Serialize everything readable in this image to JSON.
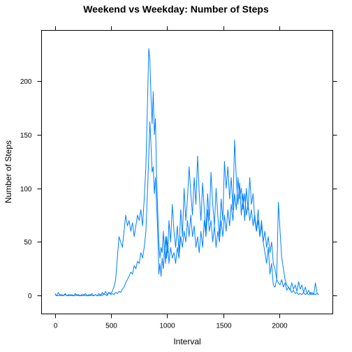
{
  "chart_data": {
    "type": "line",
    "title": "Weekend vs Weekday: Number of Steps",
    "xlabel": "Interval",
    "ylabel": "Number of Steps",
    "xlim": [
      -120,
      2475
    ],
    "ylim": [
      -17,
      247
    ],
    "xticks": [
      0,
      500,
      1000,
      1500,
      2000
    ],
    "yticks": [
      0,
      50,
      100,
      150,
      200
    ],
    "grid": false,
    "legend": "none",
    "line_color": "#0080ff",
    "series": [
      {
        "values": [
          [
            0,
            2
          ],
          [
            15,
            0
          ],
          [
            30,
            3
          ],
          [
            45,
            0
          ],
          [
            60,
            1
          ],
          [
            75,
            0
          ],
          [
            90,
            2
          ],
          [
            105,
            0
          ],
          [
            120,
            1
          ],
          [
            135,
            0
          ],
          [
            150,
            1
          ],
          [
            165,
            0
          ],
          [
            180,
            2
          ],
          [
            195,
            0
          ],
          [
            210,
            1
          ],
          [
            225,
            0
          ],
          [
            240,
            1
          ],
          [
            255,
            0
          ],
          [
            270,
            2
          ],
          [
            285,
            0
          ],
          [
            300,
            1
          ],
          [
            315,
            0
          ],
          [
            330,
            2
          ],
          [
            345,
            0
          ],
          [
            360,
            1
          ],
          [
            375,
            0
          ],
          [
            390,
            2
          ],
          [
            405,
            0
          ],
          [
            420,
            3
          ],
          [
            435,
            1
          ],
          [
            450,
            4
          ],
          [
            465,
            1
          ],
          [
            480,
            3
          ],
          [
            495,
            2
          ],
          [
            510,
            4
          ],
          [
            525,
            8
          ],
          [
            540,
            15
          ],
          [
            555,
            35
          ],
          [
            570,
            55
          ],
          [
            585,
            50
          ],
          [
            600,
            45
          ],
          [
            615,
            60
          ],
          [
            630,
            75
          ],
          [
            645,
            65
          ],
          [
            660,
            70
          ],
          [
            675,
            60
          ],
          [
            690,
            68
          ],
          [
            705,
            55
          ],
          [
            720,
            65
          ],
          [
            735,
            75
          ],
          [
            750,
            70
          ],
          [
            765,
            80
          ],
          [
            780,
            65
          ],
          [
            795,
            90
          ],
          [
            810,
            120
          ],
          [
            825,
            185
          ],
          [
            835,
            230
          ],
          [
            845,
            220
          ],
          [
            855,
            185
          ],
          [
            865,
            160
          ],
          [
            875,
            190
          ],
          [
            885,
            150
          ],
          [
            895,
            165
          ],
          [
            905,
            110
          ],
          [
            915,
            80
          ],
          [
            925,
            50
          ],
          [
            935,
            35
          ],
          [
            945,
            45
          ],
          [
            955,
            40
          ],
          [
            965,
            60
          ],
          [
            975,
            40
          ],
          [
            985,
            55
          ],
          [
            995,
            35
          ],
          [
            1005,
            50
          ],
          [
            1015,
            30
          ],
          [
            1030,
            45
          ],
          [
            1045,
            35
          ],
          [
            1060,
            40
          ],
          [
            1075,
            30
          ],
          [
            1090,
            45
          ],
          [
            1105,
            35
          ],
          [
            1120,
            55
          ],
          [
            1135,
            45
          ],
          [
            1150,
            60
          ],
          [
            1165,
            50
          ],
          [
            1180,
            70
          ],
          [
            1195,
            55
          ],
          [
            1210,
            75
          ],
          [
            1225,
            55
          ],
          [
            1240,
            65
          ],
          [
            1255,
            45
          ],
          [
            1270,
            55
          ],
          [
            1285,
            40
          ],
          [
            1300,
            60
          ],
          [
            1315,
            45
          ],
          [
            1330,
            70
          ],
          [
            1345,
            55
          ],
          [
            1360,
            80
          ],
          [
            1375,
            60
          ],
          [
            1390,
            70
          ],
          [
            1405,
            50
          ],
          [
            1420,
            65
          ],
          [
            1435,
            45
          ],
          [
            1450,
            60
          ],
          [
            1465,
            50
          ],
          [
            1480,
            70
          ],
          [
            1495,
            55
          ],
          [
            1510,
            75
          ],
          [
            1525,
            60
          ],
          [
            1540,
            80
          ],
          [
            1555,
            65
          ],
          [
            1570,
            85
          ],
          [
            1585,
            70
          ],
          [
            1600,
            95
          ],
          [
            1615,
            80
          ],
          [
            1630,
            110
          ],
          [
            1645,
            90
          ],
          [
            1660,
            100
          ],
          [
            1675,
            80
          ],
          [
            1690,
            95
          ],
          [
            1705,
            75
          ],
          [
            1720,
            85
          ],
          [
            1735,
            70
          ],
          [
            1750,
            80
          ],
          [
            1765,
            65
          ],
          [
            1780,
            75
          ],
          [
            1795,
            60
          ],
          [
            1810,
            70
          ],
          [
            1825,
            55
          ],
          [
            1840,
            65
          ],
          [
            1855,
            50
          ],
          [
            1870,
            60
          ],
          [
            1885,
            45
          ],
          [
            1900,
            55
          ],
          [
            1915,
            40
          ],
          [
            1930,
            50
          ],
          [
            1945,
            30
          ],
          [
            1960,
            25
          ],
          [
            1975,
            15
          ],
          [
            1990,
            12
          ],
          [
            2005,
            10
          ],
          [
            2020,
            15
          ],
          [
            2035,
            8
          ],
          [
            2050,
            12
          ],
          [
            2065,
            5
          ],
          [
            2080,
            8
          ],
          [
            2095,
            6
          ],
          [
            2110,
            3
          ],
          [
            2125,
            5
          ],
          [
            2140,
            2
          ],
          [
            2155,
            3
          ],
          [
            2170,
            1
          ],
          [
            2185,
            2
          ],
          [
            2200,
            1
          ],
          [
            2215,
            3
          ],
          [
            2230,
            1
          ],
          [
            2245,
            2
          ],
          [
            2260,
            1
          ],
          [
            2275,
            3
          ],
          [
            2290,
            1
          ],
          [
            2305,
            2
          ],
          [
            2320,
            1
          ],
          [
            2335,
            2
          ],
          [
            2350,
            1
          ]
        ]
      },
      {
        "values": [
          [
            0,
            1
          ],
          [
            15,
            0
          ],
          [
            30,
            0
          ],
          [
            45,
            1
          ],
          [
            60,
            0
          ],
          [
            75,
            0
          ],
          [
            90,
            1
          ],
          [
            105,
            0
          ],
          [
            120,
            0
          ],
          [
            135,
            1
          ],
          [
            150,
            0
          ],
          [
            165,
            0
          ],
          [
            180,
            0
          ],
          [
            195,
            1
          ],
          [
            210,
            0
          ],
          [
            225,
            0
          ],
          [
            240,
            0
          ],
          [
            255,
            1
          ],
          [
            270,
            0
          ],
          [
            285,
            0
          ],
          [
            300,
            0
          ],
          [
            315,
            1
          ],
          [
            330,
            0
          ],
          [
            345,
            0
          ],
          [
            360,
            1
          ],
          [
            375,
            0
          ],
          [
            390,
            0
          ],
          [
            405,
            1
          ],
          [
            420,
            0
          ],
          [
            435,
            2
          ],
          [
            450,
            1
          ],
          [
            465,
            0
          ],
          [
            480,
            3
          ],
          [
            495,
            1
          ],
          [
            510,
            2
          ],
          [
            525,
            1
          ],
          [
            540,
            3
          ],
          [
            555,
            2
          ],
          [
            570,
            4
          ],
          [
            585,
            3
          ],
          [
            600,
            6
          ],
          [
            615,
            8
          ],
          [
            630,
            12
          ],
          [
            645,
            15
          ],
          [
            660,
            18
          ],
          [
            675,
            22
          ],
          [
            690,
            20
          ],
          [
            705,
            28
          ],
          [
            720,
            25
          ],
          [
            735,
            32
          ],
          [
            750,
            30
          ],
          [
            765,
            40
          ],
          [
            780,
            35
          ],
          [
            795,
            45
          ],
          [
            810,
            60
          ],
          [
            825,
            100
          ],
          [
            835,
            130
          ],
          [
            845,
            162
          ],
          [
            855,
            140
          ],
          [
            865,
            115
          ],
          [
            875,
            120
          ],
          [
            885,
            95
          ],
          [
            895,
            110
          ],
          [
            905,
            85
          ],
          [
            915,
            60
          ],
          [
            925,
            20
          ],
          [
            935,
            30
          ],
          [
            945,
            18
          ],
          [
            955,
            35
          ],
          [
            965,
            25
          ],
          [
            975,
            45
          ],
          [
            985,
            30
          ],
          [
            995,
            55
          ],
          [
            1005,
            40
          ],
          [
            1015,
            70
          ],
          [
            1030,
            50
          ],
          [
            1045,
            85
          ],
          [
            1060,
            60
          ],
          [
            1075,
            45
          ],
          [
            1090,
            65
          ],
          [
            1105,
            40
          ],
          [
            1120,
            80
          ],
          [
            1135,
            55
          ],
          [
            1150,
            100
          ],
          [
            1165,
            70
          ],
          [
            1180,
            90
          ],
          [
            1195,
            120
          ],
          [
            1210,
            95
          ],
          [
            1225,
            75
          ],
          [
            1240,
            110
          ],
          [
            1255,
            85
          ],
          [
            1270,
            130
          ],
          [
            1285,
            95
          ],
          [
            1300,
            70
          ],
          [
            1315,
            105
          ],
          [
            1330,
            80
          ],
          [
            1345,
            60
          ],
          [
            1360,
            95
          ],
          [
            1375,
            70
          ],
          [
            1390,
            115
          ],
          [
            1405,
            85
          ],
          [
            1420,
            65
          ],
          [
            1435,
            100
          ],
          [
            1450,
            75
          ],
          [
            1465,
            55
          ],
          [
            1480,
            90
          ],
          [
            1495,
            70
          ],
          [
            1510,
            125
          ],
          [
            1525,
            100
          ],
          [
            1540,
            120
          ],
          [
            1555,
            90
          ],
          [
            1570,
            110
          ],
          [
            1585,
            80
          ],
          [
            1600,
            145
          ],
          [
            1615,
            110
          ],
          [
            1630,
            85
          ],
          [
            1645,
            105
          ],
          [
            1660,
            75
          ],
          [
            1675,
            95
          ],
          [
            1690,
            70
          ],
          [
            1705,
            100
          ],
          [
            1720,
            80
          ],
          [
            1735,
            110
          ],
          [
            1750,
            85
          ],
          [
            1765,
            95
          ],
          [
            1780,
            70
          ],
          [
            1795,
            60
          ],
          [
            1810,
            80
          ],
          [
            1825,
            55
          ],
          [
            1840,
            70
          ],
          [
            1855,
            50
          ],
          [
            1870,
            40
          ],
          [
            1885,
            30
          ],
          [
            1900,
            45
          ],
          [
            1915,
            20
          ],
          [
            1930,
            30
          ],
          [
            1945,
            10
          ],
          [
            1960,
            8
          ],
          [
            1975,
            15
          ],
          [
            1990,
            87
          ],
          [
            2005,
            60
          ],
          [
            2020,
            35
          ],
          [
            2035,
            25
          ],
          [
            2050,
            15
          ],
          [
            2065,
            10
          ],
          [
            2080,
            8
          ],
          [
            2095,
            5
          ],
          [
            2110,
            12
          ],
          [
            2125,
            6
          ],
          [
            2140,
            10
          ],
          [
            2155,
            4
          ],
          [
            2170,
            13
          ],
          [
            2185,
            6
          ],
          [
            2200,
            10
          ],
          [
            2215,
            3
          ],
          [
            2230,
            8
          ],
          [
            2245,
            2
          ],
          [
            2260,
            5
          ],
          [
            2275,
            1
          ],
          [
            2290,
            3
          ],
          [
            2305,
            1
          ],
          [
            2320,
            12
          ],
          [
            2335,
            2
          ],
          [
            2350,
            1
          ]
        ]
      }
    ]
  }
}
